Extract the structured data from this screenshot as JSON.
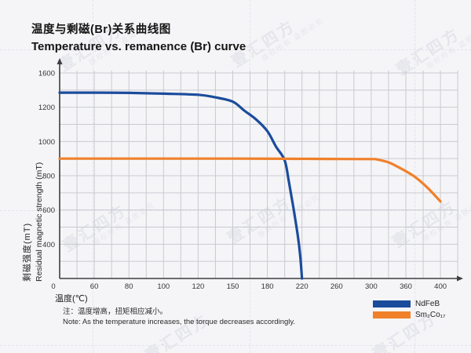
{
  "title": {
    "cn": "温度与剩磁(Br)关系曲线图",
    "en": "Temperature vs. remanence (Br) curve"
  },
  "axes": {
    "x_title": "温度(℃)",
    "y_title_cn": "剩磁强度(mT)",
    "y_title_en": "Residual magnetic strength (mT)"
  },
  "legend": {
    "items": [
      {
        "label": "NdFeB",
        "color": "#1b4c9c"
      },
      {
        "label": "Sm₂Co₁₇",
        "color": "#f0802a"
      }
    ]
  },
  "notes": {
    "cn": "注：温度增高，扭矩相应减小。",
    "en": "Note: As the temperature increases, the torque decreases accordingly."
  },
  "watermark": {
    "primary": "壹汇四方",
    "secondary": "版权所有 盗图必究"
  },
  "colors": {
    "ndfeb": "#1b4c9c",
    "sm2co17": "#f0802a",
    "grid": "#c9cad1",
    "axis": "#3f3f42",
    "tick_text": "#333333"
  },
  "chart_data": {
    "type": "line",
    "title": "Temperature vs. remanence (Br) curve",
    "xlabel": "温度(℃)",
    "ylabel": "剩磁强度(mT) / Residual magnetic strength (mT)",
    "grid": true,
    "legend_position": "bottom-right",
    "x_tick_labels": [
      "0",
      "60",
      "80",
      "100",
      "120",
      "150",
      "180",
      "220",
      "260",
      "300",
      "360",
      "400"
    ],
    "x_tick_values": [
      0,
      60,
      80,
      100,
      120,
      150,
      180,
      220,
      260,
      300,
      360,
      400
    ],
    "y_tick_labels": [
      "1600",
      "1200",
      "1000",
      "800",
      "600",
      "400"
    ],
    "y_axis_anchors": [
      1600,
      1200,
      1000,
      800,
      600,
      400,
      0
    ],
    "y_origin_label": "0",
    "series": [
      {
        "name": "NdFeB",
        "color": "#1b4c9c",
        "points": [
          [
            0,
            1370
          ],
          [
            30,
            1370
          ],
          [
            60,
            1370
          ],
          [
            80,
            1367
          ],
          [
            100,
            1358
          ],
          [
            120,
            1345
          ],
          [
            135,
            1315
          ],
          [
            150,
            1265
          ],
          [
            160,
            1180
          ],
          [
            170,
            1130
          ],
          [
            180,
            1060
          ],
          [
            190,
            970
          ],
          [
            200,
            890
          ],
          [
            205,
            760
          ],
          [
            210,
            615
          ],
          [
            215,
            455
          ],
          [
            218,
            260
          ],
          [
            220,
            0
          ]
        ]
      },
      {
        "name": "Sm₂Co₁₇",
        "color": "#f0802a",
        "points": [
          [
            0,
            900
          ],
          [
            50,
            900
          ],
          [
            100,
            900
          ],
          [
            150,
            900
          ],
          [
            200,
            899
          ],
          [
            250,
            898
          ],
          [
            300,
            897
          ],
          [
            310,
            895
          ],
          [
            330,
            878
          ],
          [
            350,
            845
          ],
          [
            370,
            795
          ],
          [
            385,
            730
          ],
          [
            400,
            650
          ]
        ]
      }
    ]
  }
}
